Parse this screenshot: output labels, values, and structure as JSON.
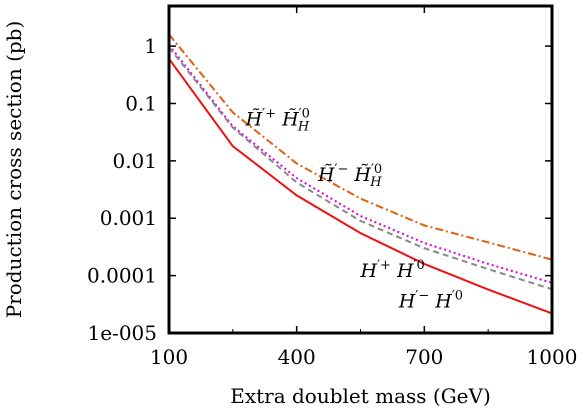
{
  "chart_data": {
    "type": "line",
    "title": "",
    "xlabel": "Extra doublet mass (GeV)",
    "ylabel": "Production cross section (pb)",
    "xscale": "linear",
    "yscale": "log",
    "xlim": [
      100,
      1000
    ],
    "ylim": [
      1e-05,
      5
    ],
    "x_ticks": [
      100,
      400,
      700,
      1000
    ],
    "x_tick_labels": [
      "100",
      "400",
      "700",
      "1000"
    ],
    "y_ticks": [
      1e-05,
      0.0001,
      0.001,
      0.01,
      0.1,
      1
    ],
    "y_tick_labels": [
      "1e-005",
      "0.0001",
      "0.001",
      "0.01",
      "0.1",
      "1"
    ],
    "grid": false,
    "legend": "none",
    "series": [
      {
        "color": "#e06010",
        "dash": "dash-dot",
        "x": [
          100,
          250,
          400,
          550,
          700,
          850,
          1000
        ],
        "y": [
          1.6,
          0.07,
          0.009,
          0.0022,
          0.00075,
          0.00038,
          0.00019
        ]
      },
      {
        "color": "#dd00dd",
        "dash": "dotted",
        "x": [
          100,
          250,
          400,
          550,
          700,
          850,
          1000
        ],
        "y": [
          1.05,
          0.04,
          0.005,
          0.0011,
          0.00037,
          0.00016,
          7.5e-05
        ]
      },
      {
        "color": "#888888",
        "dash": "dashed",
        "x": [
          100,
          250,
          400,
          550,
          700,
          850,
          1000
        ],
        "y": [
          0.95,
          0.038,
          0.0042,
          0.0009,
          0.0003,
          0.00013,
          5.8e-05
        ]
      },
      {
        "color": "#ee1111",
        "dash": "solid",
        "x": [
          100,
          250,
          400,
          550,
          700,
          850,
          1000
        ],
        "y": [
          0.6,
          0.018,
          0.0025,
          0.00055,
          0.00016,
          5.7e-05,
          2.2e-05
        ]
      }
    ],
    "annotations": [
      {
        "parts": [
          [
            "H̃",
            ""
          ],
          [
            "′+",
            "sup"
          ],
          [
            " H̃",
            ""
          ],
          [
            "′0",
            "sup"
          ],
          [
            "H",
            "sub"
          ]
        ],
        "x": 280,
        "y": 0.041
      },
      {
        "parts": [
          [
            "H̃",
            ""
          ],
          [
            "′−",
            "sup"
          ],
          [
            " H̃",
            ""
          ],
          [
            "′0",
            "sup"
          ],
          [
            "H",
            "sub"
          ]
        ],
        "x": 450,
        "y": 0.0045
      },
      {
        "parts": [
          [
            "H",
            ""
          ],
          [
            "′+",
            "sup"
          ],
          [
            " H",
            ""
          ],
          [
            "′0",
            "sup"
          ]
        ],
        "x": 550,
        "y": 9.5e-05
      },
      {
        "parts": [
          [
            "H",
            ""
          ],
          [
            "′−",
            "sup"
          ],
          [
            " H",
            ""
          ],
          [
            "′0",
            "sup"
          ]
        ],
        "x": 640,
        "y": 2.8e-05
      }
    ]
  }
}
